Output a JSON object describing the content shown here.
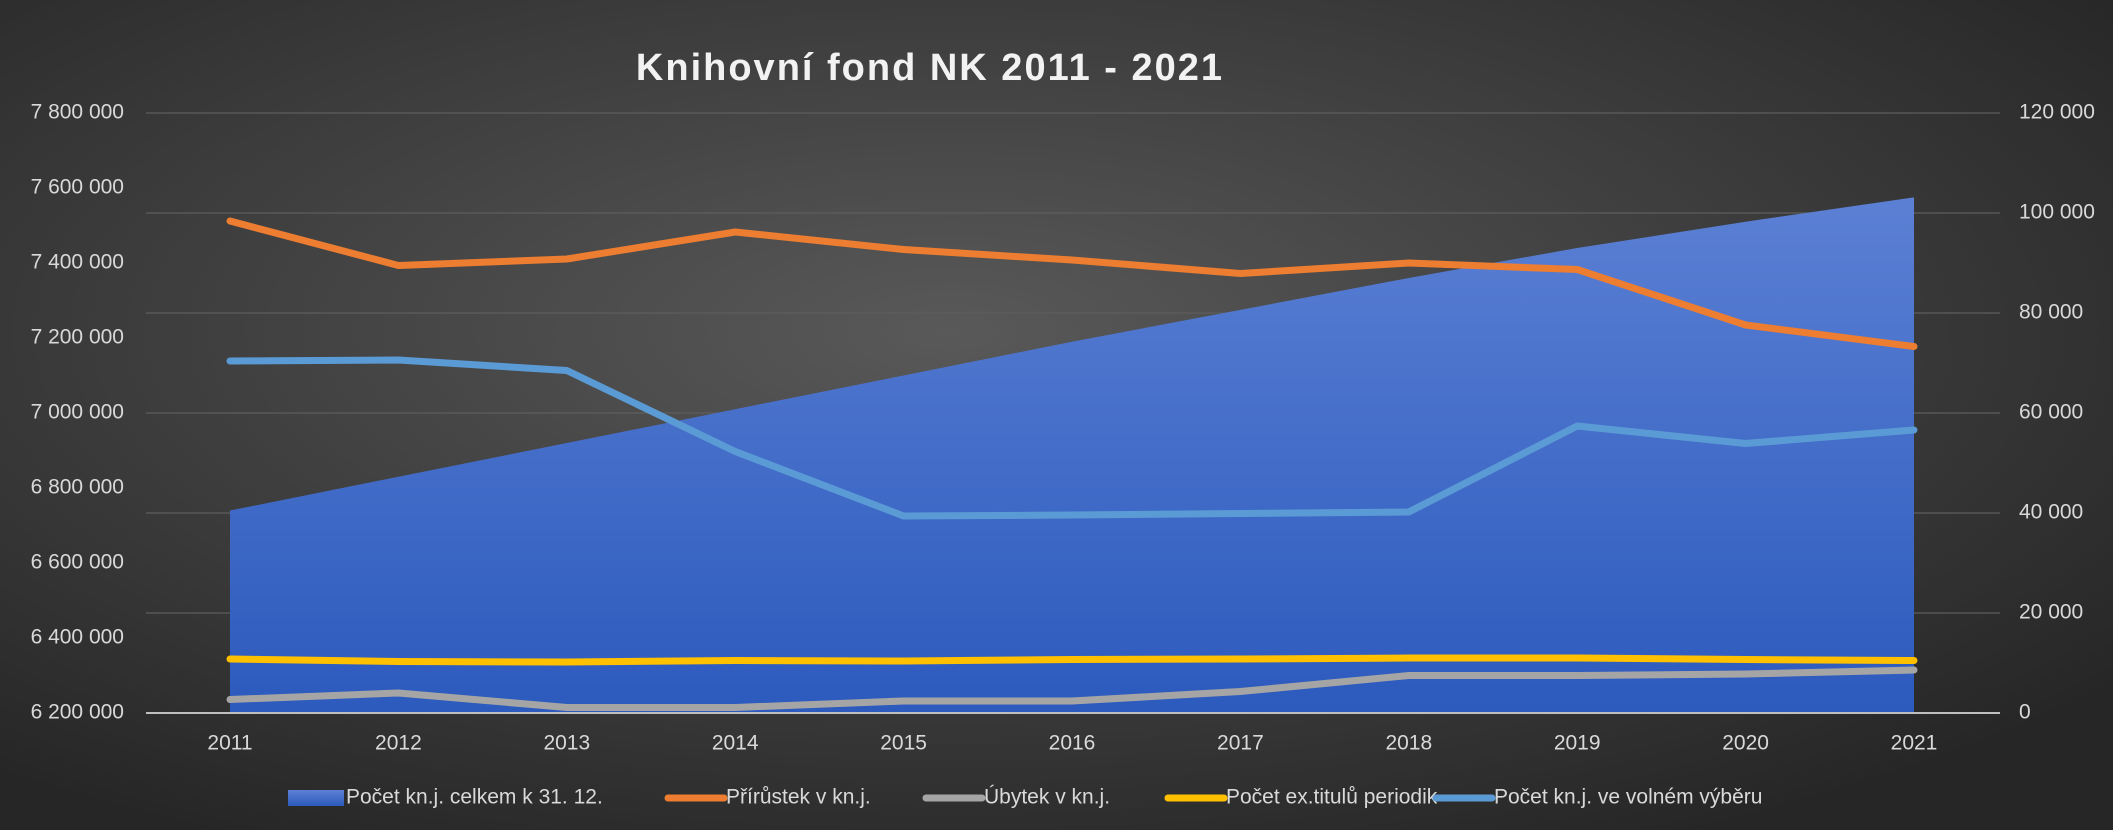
{
  "chart_data": {
    "type": "combo",
    "title": "Knihovní fond NK 2011 - 2021",
    "categories": [
      "2011",
      "2012",
      "2013",
      "2014",
      "2015",
      "2016",
      "2017",
      "2018",
      "2019",
      "2020",
      "2021"
    ],
    "series": [
      {
        "name": "Počet kn.j. celkem k 31. 12.",
        "type": "area",
        "color": "#4472c4",
        "axis": "y",
        "values": [
          6740000,
          6830000,
          6920000,
          7010000,
          7100000,
          7190000,
          7275000,
          7360000,
          7440000,
          7510000,
          7575000
        ]
      },
      {
        "name": "Přírůstek v kn.j.",
        "type": "line",
        "color": "#ed7d31",
        "axis": "y2",
        "values": [
          98400,
          89500,
          90800,
          96200,
          92700,
          90600,
          87900,
          90000,
          88700,
          77600,
          73300
        ]
      },
      {
        "name": "Úbytek v kn.j.",
        "type": "line",
        "color": "#a5a5a5",
        "axis": "y2",
        "values": [
          2700,
          4000,
          1100,
          1100,
          2400,
          2400,
          4300,
          7500,
          7500,
          7800,
          8600
        ]
      },
      {
        "name": "Počet ex.titulů periodik",
        "type": "line",
        "color": "#ffc000",
        "axis": "y2",
        "values": [
          10800,
          10300,
          10200,
          10500,
          10400,
          10700,
          10800,
          11000,
          11000,
          10700,
          10500
        ]
      },
      {
        "name": "Počet kn.j. ve volném výběru",
        "type": "line",
        "color": "#5b9bd5",
        "axis": "y2",
        "values": [
          70400,
          70600,
          68500,
          52300,
          39400,
          39600,
          39900,
          40200,
          57400,
          53900,
          56600
        ]
      }
    ],
    "ylim": [
      6200000,
      7800000
    ],
    "yticks": [
      {
        "value": 6200000,
        "label": "6 200 000"
      },
      {
        "value": 6400000,
        "label": "6 400 000"
      },
      {
        "value": 6600000,
        "label": "6 600 000"
      },
      {
        "value": 6800000,
        "label": "6 800 000"
      },
      {
        "value": 7000000,
        "label": "7 000 000"
      },
      {
        "value": 7200000,
        "label": "7 200 000"
      },
      {
        "value": 7400000,
        "label": "7 400 000"
      },
      {
        "value": 7600000,
        "label": "7 600 000"
      },
      {
        "value": 7800000,
        "label": "7 800 000"
      }
    ],
    "y2lim": [
      0,
      120000
    ],
    "y2ticks": [
      0,
      {
        "value": 20000,
        "label": "20 000"
      },
      {
        "value": 40000,
        "label": "40 000"
      },
      {
        "value": 60000,
        "label": "60 000"
      },
      {
        "value": 80000,
        "label": "80 000"
      },
      {
        "value": 100000,
        "label": "100 000"
      },
      {
        "value": 120000,
        "label": "120 000"
      }
    ],
    "grid": true,
    "legend": "bottom"
  }
}
